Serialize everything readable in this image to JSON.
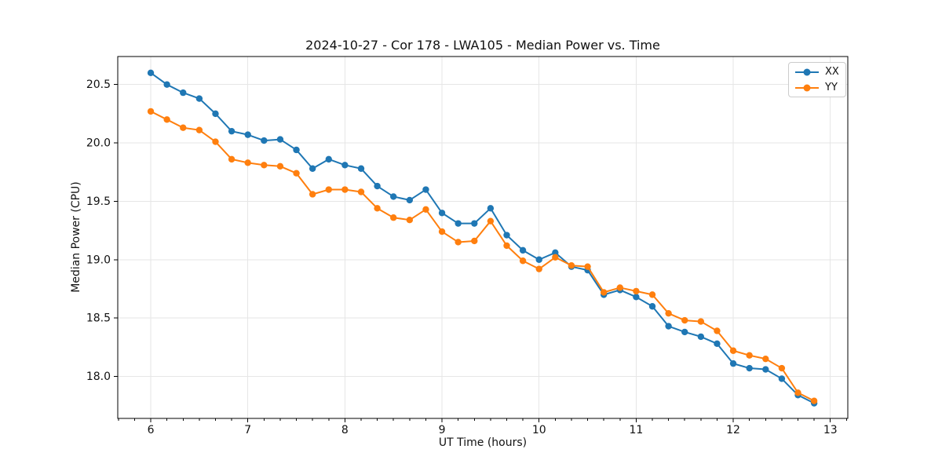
{
  "chart_data": {
    "type": "line",
    "title": "2024-10-27 - Cor 178 - LWA105 - Median Power vs. Time",
    "xlabel": "UT Time (hours)",
    "ylabel": "Median Power (CPU)",
    "xlim": [
      5.66,
      13.18
    ],
    "ylim": [
      17.64,
      20.74
    ],
    "x_major_ticks": [
      6,
      7,
      8,
      9,
      10,
      11,
      12,
      13
    ],
    "x_tick_labels": [
      "6",
      "7",
      "8",
      "9",
      "10",
      "11",
      "12",
      "13"
    ],
    "x_minor_step": 0.166667,
    "y_major_ticks": [
      18.0,
      18.5,
      19.0,
      19.5,
      20.0,
      20.5
    ],
    "y_tick_labels": [
      "18.0",
      "18.5",
      "19.0",
      "19.5",
      "20.0",
      "20.5"
    ],
    "grid": true,
    "grid_color": "#e6e6e6",
    "legend_position": "upper right",
    "x": [
      6.0,
      6.1667,
      6.3333,
      6.5,
      6.6667,
      6.8333,
      7.0,
      7.1667,
      7.3333,
      7.5,
      7.6667,
      7.8333,
      8.0,
      8.1667,
      8.3333,
      8.5,
      8.6667,
      8.8333,
      9.0,
      9.1667,
      9.3333,
      9.5,
      9.6667,
      9.8333,
      10.0,
      10.1667,
      10.3333,
      10.5,
      10.6667,
      10.8333,
      11.0,
      11.1667,
      11.3333,
      11.5,
      11.6667,
      11.8333,
      12.0,
      12.1667,
      12.3333,
      12.5,
      12.6667,
      12.8333
    ],
    "series": [
      {
        "name": "XX",
        "color": "#1f77b4",
        "values": [
          20.6,
          20.5,
          20.43,
          20.38,
          20.25,
          20.1,
          20.07,
          20.02,
          20.03,
          19.94,
          19.78,
          19.86,
          19.81,
          19.78,
          19.63,
          19.54,
          19.51,
          19.6,
          19.4,
          19.31,
          19.31,
          19.44,
          19.21,
          19.08,
          19.0,
          19.06,
          18.94,
          18.91,
          18.7,
          18.74,
          18.68,
          18.6,
          18.43,
          18.38,
          18.34,
          18.28,
          18.11,
          18.07,
          18.06,
          17.98,
          17.84,
          17.77
        ]
      },
      {
        "name": "YY",
        "color": "#ff7f0e",
        "values": [
          20.27,
          20.2,
          20.13,
          20.11,
          20.01,
          19.86,
          19.83,
          19.81,
          19.8,
          19.74,
          19.56,
          19.6,
          19.6,
          19.58,
          19.44,
          19.36,
          19.34,
          19.43,
          19.24,
          19.15,
          19.16,
          19.33,
          19.12,
          18.99,
          18.92,
          19.02,
          18.95,
          18.94,
          18.72,
          18.76,
          18.73,
          18.7,
          18.54,
          18.48,
          18.47,
          18.39,
          18.22,
          18.18,
          18.15,
          18.07,
          17.86,
          17.79
        ]
      }
    ]
  }
}
